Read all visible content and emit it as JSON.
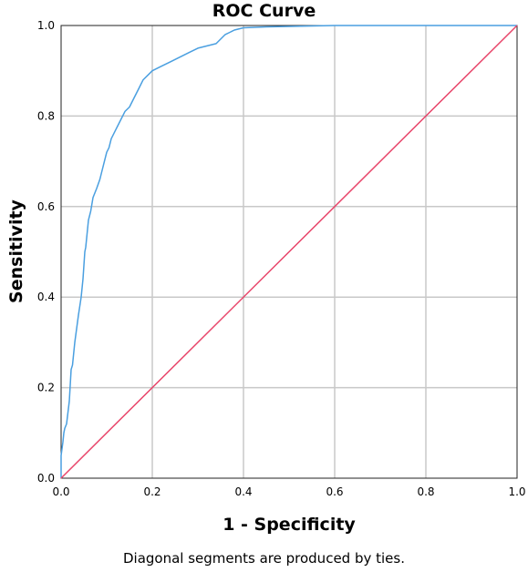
{
  "chart_data": {
    "type": "line",
    "title": "ROC Curve",
    "xlabel": "1 - Specificity",
    "ylabel": "Sensitivity",
    "footnote": "Diagonal segments are produced by ties.",
    "xlim": [
      0,
      1
    ],
    "ylim": [
      0,
      1
    ],
    "x_ticks": [
      "0.0",
      "0.2",
      "0.4",
      "0.6",
      "0.8",
      "1.0"
    ],
    "y_ticks": [
      "0.0",
      "0.2",
      "0.4",
      "0.6",
      "0.8",
      "1.0"
    ],
    "grid": true,
    "series": [
      {
        "color": "#4a9fe0",
        "x": [
          0.0,
          0.0,
          0.004,
          0.006,
          0.008,
          0.012,
          0.018,
          0.022,
          0.025,
          0.03,
          0.038,
          0.044,
          0.048,
          0.05,
          0.052,
          0.054,
          0.056,
          0.058,
          0.06,
          0.065,
          0.07,
          0.078,
          0.085,
          0.09,
          0.095,
          0.1,
          0.105,
          0.11,
          0.12,
          0.13,
          0.14,
          0.15,
          0.16,
          0.17,
          0.18,
          0.19,
          0.2,
          0.22,
          0.24,
          0.26,
          0.28,
          0.3,
          0.32,
          0.34,
          0.35,
          0.36,
          0.37,
          0.38,
          0.4,
          0.45,
          0.5,
          0.6,
          0.8,
          1.0
        ],
        "y": [
          0.0,
          0.05,
          0.08,
          0.1,
          0.11,
          0.12,
          0.17,
          0.24,
          0.25,
          0.3,
          0.36,
          0.4,
          0.44,
          0.47,
          0.5,
          0.51,
          0.53,
          0.55,
          0.57,
          0.59,
          0.62,
          0.64,
          0.66,
          0.68,
          0.7,
          0.72,
          0.73,
          0.75,
          0.77,
          0.79,
          0.81,
          0.82,
          0.84,
          0.86,
          0.88,
          0.89,
          0.9,
          0.91,
          0.92,
          0.93,
          0.94,
          0.95,
          0.955,
          0.96,
          0.97,
          0.98,
          0.985,
          0.99,
          0.995,
          0.997,
          0.998,
          1.0,
          1.0,
          1.0
        ]
      },
      {
        "color": "#e8456a",
        "x": [
          0.0,
          1.0
        ],
        "y": [
          0.0,
          1.0
        ]
      }
    ]
  }
}
